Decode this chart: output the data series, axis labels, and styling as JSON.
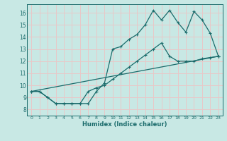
{
  "xlabel": "Humidex (Indice chaleur)",
  "bg_color": "#c8e8e4",
  "line_color": "#1a6b6b",
  "grid_color": "#e8c8c8",
  "xlim": [
    -0.5,
    23.5
  ],
  "ylim": [
    7.5,
    16.7
  ],
  "xticks": [
    0,
    1,
    2,
    3,
    4,
    5,
    6,
    7,
    8,
    9,
    10,
    11,
    12,
    13,
    14,
    15,
    16,
    17,
    18,
    19,
    20,
    21,
    22,
    23
  ],
  "yticks": [
    8,
    9,
    10,
    11,
    12,
    13,
    14,
    15,
    16
  ],
  "curve1_x": [
    0,
    1,
    2,
    3,
    4,
    5,
    6,
    7,
    8,
    9,
    10,
    11,
    12,
    13,
    14,
    15,
    16,
    17,
    18,
    19,
    20,
    21,
    22,
    23
  ],
  "curve1_y": [
    9.5,
    9.5,
    9.0,
    8.5,
    8.5,
    8.5,
    8.5,
    8.5,
    9.5,
    10.2,
    13.0,
    13.2,
    13.8,
    14.2,
    15.0,
    16.2,
    15.4,
    16.2,
    15.2,
    14.4,
    16.1,
    15.4,
    14.3,
    12.4
  ],
  "curve2_x": [
    0,
    1,
    2,
    3,
    4,
    5,
    6,
    7,
    8,
    9,
    10,
    11,
    12,
    13,
    14,
    15,
    16,
    17,
    18,
    19,
    20,
    21,
    22,
    23
  ],
  "curve2_y": [
    9.5,
    9.5,
    9.0,
    8.5,
    8.5,
    8.5,
    8.5,
    9.5,
    9.8,
    10.0,
    10.5,
    11.0,
    11.5,
    12.0,
    12.5,
    13.0,
    13.5,
    12.4,
    12.0,
    12.0,
    12.0,
    12.2,
    12.3,
    12.4
  ],
  "curve3_x": [
    0,
    23
  ],
  "curve3_y": [
    9.5,
    12.4
  ]
}
